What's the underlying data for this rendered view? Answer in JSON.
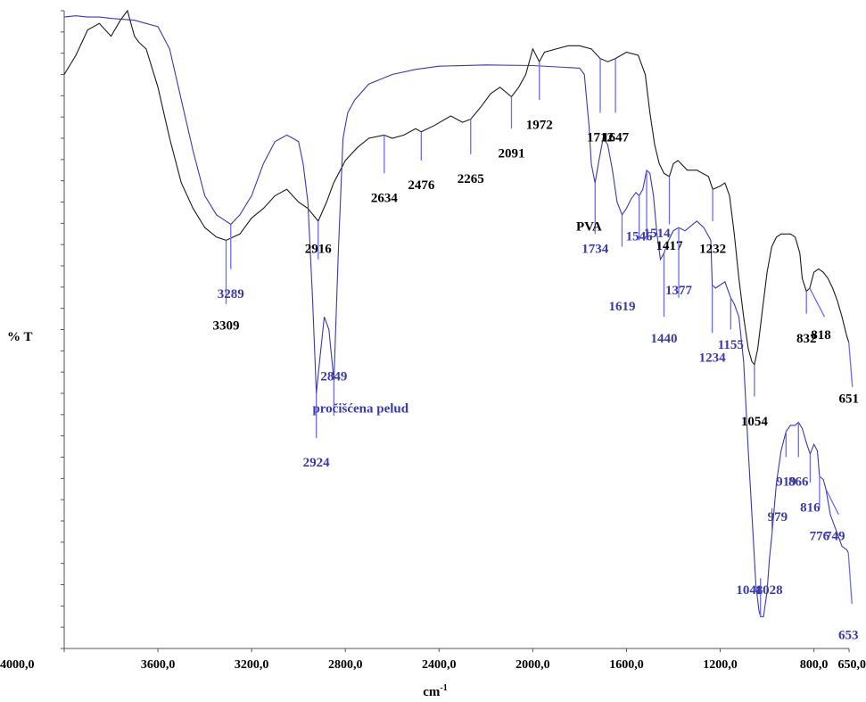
{
  "chart_data": {
    "type": "line",
    "ylabel": "% T",
    "xlabel": "cm",
    "xlabel_sup": "-1",
    "xlim": [
      4000,
      650
    ],
    "x_reversed": true,
    "x_ticks": [
      4000,
      3600,
      3200,
      2800,
      2400,
      2000,
      1600,
      1200,
      800,
      650
    ],
    "x_tick_labels": [
      "4000,0",
      "3600,0",
      "3200,0",
      "2800,0",
      "2400,0",
      "2000,0",
      "1600,0",
      "1200,0",
      "800,0",
      "650,0"
    ],
    "ylim": [
      0,
      100
    ],
    "y_tick_count": 31,
    "grid": false,
    "series": [
      {
        "name": "PVA",
        "color": "#1a1a1a",
        "x": [
          4000,
          3950,
          3900,
          3850,
          3800,
          3760,
          3730,
          3700,
          3680,
          3650,
          3600,
          3550,
          3500,
          3450,
          3400,
          3350,
          3309,
          3250,
          3200,
          3150,
          3100,
          3050,
          3000,
          2960,
          2916,
          2880,
          2850,
          2800,
          2750,
          2700,
          2634,
          2600,
          2550,
          2500,
          2476,
          2420,
          2350,
          2300,
          2265,
          2220,
          2180,
          2140,
          2091,
          2060,
          2030,
          2000,
          1972,
          1950,
          1900,
          1850,
          1800,
          1750,
          1712,
          1680,
          1647,
          1600,
          1550,
          1520,
          1500,
          1480,
          1460,
          1440,
          1417,
          1400,
          1380,
          1340,
          1300,
          1250,
          1232,
          1200,
          1180,
          1160,
          1140,
          1120,
          1100,
          1080,
          1065,
          1054,
          1040,
          1020,
          1000,
          980,
          960,
          940,
          900,
          880,
          860,
          850,
          832,
          818,
          800,
          780,
          760,
          740,
          720,
          700,
          680,
          660,
          651
        ],
        "y": [
          90,
          93,
          97,
          98,
          96,
          98.5,
          100,
          96,
          95,
          94,
          88,
          80,
          73,
          69,
          66,
          64.5,
          64,
          65,
          67.5,
          69,
          71,
          72,
          70,
          69,
          67,
          70,
          73,
          76.5,
          78.5,
          80,
          80.5,
          80,
          80.5,
          81.5,
          81,
          82,
          83.5,
          82.5,
          83,
          85,
          87,
          88,
          86.5,
          88,
          90,
          94,
          92,
          93.5,
          94,
          94.5,
          94.5,
          94,
          92.5,
          92,
          92.5,
          93.5,
          93,
          90,
          84,
          79,
          76,
          74.5,
          74,
          76,
          76.5,
          75,
          75,
          74,
          72,
          72.5,
          73,
          71,
          65,
          58,
          52,
          47,
          45,
          44.5,
          47,
          53,
          59,
          63,
          64.5,
          65,
          65,
          64.5,
          62,
          58,
          56,
          56.5,
          59,
          59.5,
          59,
          58,
          56.5,
          54.5,
          52,
          49,
          48
        ]
      },
      {
        "name": "pročišćena pelud",
        "color": "#3a3aa8",
        "x": [
          4000,
          3950,
          3900,
          3850,
          3800,
          3700,
          3650,
          3600,
          3550,
          3500,
          3450,
          3400,
          3350,
          3289,
          3250,
          3200,
          3150,
          3100,
          3050,
          3000,
          2980,
          2960,
          2940,
          2924,
          2910,
          2890,
          2870,
          2849,
          2830,
          2810,
          2790,
          2760,
          2700,
          2600,
          2500,
          2400,
          2200,
          2000,
          1800,
          1780,
          1760,
          1750,
          1734,
          1720,
          1700,
          1680,
          1660,
          1640,
          1619,
          1600,
          1580,
          1560,
          1546,
          1530,
          1514,
          1500,
          1485,
          1470,
          1455,
          1440,
          1420,
          1400,
          1377,
          1350,
          1300,
          1270,
          1240,
          1234,
          1220,
          1200,
          1180,
          1160,
          1155,
          1140,
          1120,
          1100,
          1080,
          1060,
          1048,
          1035,
          1028,
          1015,
          1000,
          990,
          979,
          960,
          940,
          919,
          900,
          880,
          866,
          850,
          830,
          816,
          800,
          785,
          776,
          760,
          749,
          730,
          700,
          680,
          660,
          653
        ],
        "y": [
          99,
          99.2,
          99,
          99,
          98.8,
          98.5,
          98,
          97.5,
          94,
          86,
          78,
          71,
          68,
          66.5,
          68,
          71,
          76,
          79.5,
          80.5,
          79.5,
          76,
          70,
          55,
          40,
          45,
          52,
          50,
          42,
          62,
          80,
          84,
          86,
          88.5,
          90,
          90.8,
          91.3,
          91.5,
          91.4,
          91,
          90,
          82,
          76,
          73,
          76,
          80,
          79,
          75,
          70,
          68,
          69,
          70.5,
          71.5,
          71,
          72,
          75,
          74.5,
          71,
          65,
          61,
          62,
          64,
          65.5,
          66,
          65.5,
          67,
          66,
          64,
          57,
          56.5,
          57,
          57.5,
          55.5,
          55,
          54,
          52,
          45,
          31,
          18,
          10,
          6,
          5,
          5,
          9,
          14,
          18,
          26,
          31,
          34,
          35,
          35,
          35.5,
          34.5,
          32,
          30.5,
          32,
          31,
          27,
          26.5,
          25,
          21,
          18,
          16,
          15.5,
          15
        ]
      }
    ],
    "series_labels": [
      {
        "text": "PVA",
        "x": 1815,
        "y": 65.5
      },
      {
        "text": "pročišćena pelud",
        "x": 2940,
        "y": 37
      }
    ],
    "peaks": [
      {
        "series": 0,
        "x": 3309,
        "label": "3309",
        "tick_to_y": 54,
        "label_x": 3309,
        "label_y": 50
      },
      {
        "series": 0,
        "x": 2916,
        "label": "2916",
        "tick_to_y": 61,
        "label_x": 2916,
        "label_y": 62
      },
      {
        "series": 0,
        "x": 2634,
        "label": "2634",
        "tick_to_y": 74.5,
        "label_x": 2634,
        "label_y": 70
      },
      {
        "series": 0,
        "x": 2476,
        "label": "2476",
        "tick_to_y": 76.5,
        "label_x": 2476,
        "label_y": 72
      },
      {
        "series": 0,
        "x": 2265,
        "label": "2265",
        "tick_to_y": 77.5,
        "label_x": 2265,
        "label_y": 73
      },
      {
        "series": 0,
        "x": 2091,
        "label": "2091",
        "tick_to_y": 81.5,
        "label_x": 2091,
        "label_y": 77
      },
      {
        "series": 0,
        "x": 1972,
        "label": "1972",
        "tick_to_y": 86,
        "label_x": 1972,
        "label_y": 81.5
      },
      {
        "series": 0,
        "x": 1712,
        "label": "1712",
        "tick_to_y": 84,
        "label_x": 1712,
        "label_y": 79.5
      },
      {
        "series": 0,
        "x": 1647,
        "label": "1647",
        "tick_to_y": 84,
        "label_x": 1647,
        "label_y": 79.5
      },
      {
        "series": 0,
        "x": 1417,
        "label": "1417",
        "tick_to_y": 66.5,
        "label_x": 1417,
        "label_y": 62.5
      },
      {
        "series": 0,
        "x": 1232,
        "label": "1232",
        "tick_to_y": 67,
        "label_x": 1232,
        "label_y": 62
      },
      {
        "series": 0,
        "x": 1054,
        "label": "1054",
        "tick_to_y": 39.5,
        "label_x": 1054,
        "label_y": 35
      },
      {
        "series": 0,
        "x": 832,
        "label": "832",
        "tick_to_y": 52.5,
        "label_x": 832,
        "label_y": 48
      },
      {
        "series": 0,
        "x": 818,
        "label": "818",
        "tick_to_y": 52,
        "label_x": 770,
        "label_y": 48.5,
        "slanted": true
      },
      {
        "series": 0,
        "x": 651,
        "label": "651",
        "tick_to_y": 41,
        "label_x": 651,
        "label_y": 38.5,
        "slanted": true
      },
      {
        "series": 1,
        "x": 3289,
        "label": "3289",
        "tick_to_y": 59.5,
        "label_x": 3289,
        "label_y": 55
      },
      {
        "series": 1,
        "x": 2924,
        "label": "2924",
        "tick_to_y": 33,
        "label_x": 2924,
        "label_y": 28.5
      },
      {
        "series": 1,
        "x": 2849,
        "label": "2849",
        "tick_to_y": 36.5,
        "label_x": 2849,
        "label_y": 42
      },
      {
        "series": 1,
        "x": 1734,
        "label": "1734",
        "tick_to_y": 65,
        "label_x": 1734,
        "label_y": 62
      },
      {
        "series": 1,
        "x": 1619,
        "label": "1619",
        "tick_to_y": 63,
        "label_x": 1619,
        "label_y": 53
      },
      {
        "series": 1,
        "x": 1546,
        "label": "1546",
        "tick_to_y": 64,
        "label_x": 1546,
        "label_y": 64
      },
      {
        "series": 1,
        "x": 1514,
        "label": "1514",
        "tick_to_y": 64,
        "label_x": 1470,
        "label_y": 64.5
      },
      {
        "series": 1,
        "x": 1440,
        "label": "1440",
        "tick_to_y": 52,
        "label_x": 1440,
        "label_y": 48
      },
      {
        "series": 1,
        "x": 1377,
        "label": "1377",
        "tick_to_y": 55,
        "label_x": 1377,
        "label_y": 55.5
      },
      {
        "series": 1,
        "x": 1234,
        "label": "1234",
        "tick_to_y": 49.5,
        "label_x": 1234,
        "label_y": 45
      },
      {
        "series": 1,
        "x": 1155,
        "label": "1155",
        "tick_to_y": 50,
        "label_x": 1155,
        "label_y": 47
      },
      {
        "series": 1,
        "x": 1048,
        "label": "1048",
        "tick_to_y": 9,
        "label_x": 1075,
        "label_y": 8.5
      },
      {
        "series": 1,
        "x": 1028,
        "label": "1028",
        "tick_to_y": 11,
        "label_x": 990,
        "label_y": 8.5
      },
      {
        "series": 1,
        "x": 979,
        "label": "979",
        "tick_to_y": 22,
        "label_x": 955,
        "label_y": 20
      },
      {
        "series": 1,
        "x": 919,
        "label": "919",
        "tick_to_y": 30,
        "label_x": 919,
        "label_y": 25.5
      },
      {
        "series": 1,
        "x": 866,
        "label": "866",
        "tick_to_y": 30,
        "label_x": 866,
        "label_y": 25.5
      },
      {
        "series": 1,
        "x": 816,
        "label": "816",
        "tick_to_y": 26,
        "label_x": 816,
        "label_y": 21.5
      },
      {
        "series": 1,
        "x": 776,
        "label": "776",
        "tick_to_y": 22,
        "label_x": 776,
        "label_y": 17
      },
      {
        "series": 1,
        "x": 749,
        "label": "749",
        "tick_to_y": 21,
        "label_x": 710,
        "label_y": 17,
        "slanted": true
      },
      {
        "series": 1,
        "x": 653,
        "label": "653",
        "tick_to_y": 7,
        "label_x": 653,
        "label_y": 1.5,
        "slanted": true
      }
    ]
  }
}
